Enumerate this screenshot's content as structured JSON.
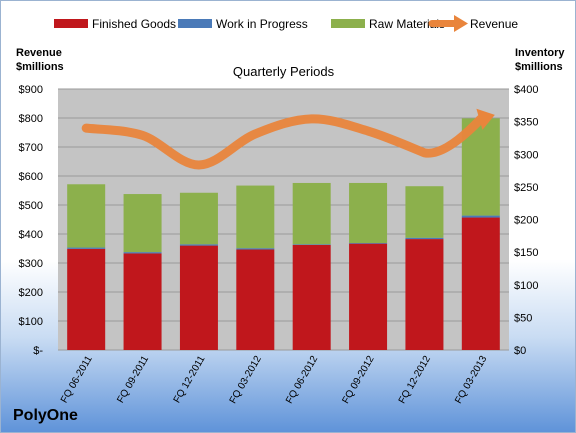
{
  "company": "PolyOne",
  "chart_data": {
    "type": "bar",
    "title": "Quarterly Periods",
    "ylabel_left": [
      "Revenue",
      "$millions"
    ],
    "ylabel_right": [
      "Inventory",
      "$millions"
    ],
    "categories": [
      "FQ 06-2011",
      "FQ 09-2011",
      "FQ 12-2011",
      "FQ 03-2012",
      "FQ 06-2012",
      "FQ 09-2012",
      "FQ 12-2012",
      "FQ 03-2013"
    ],
    "left_axis": {
      "min": 0,
      "max": 900,
      "step": 100,
      "ticks": [
        "$-",
        "$100",
        "$200",
        "$300",
        "$400",
        "$500",
        "$600",
        "$700",
        "$800",
        "$900"
      ]
    },
    "right_axis": {
      "min": 0,
      "max": 400,
      "step": 50,
      "ticks": [
        "$0",
        "$50",
        "$100",
        "$150",
        "$200",
        "$250",
        "$300",
        "$350",
        "$400"
      ]
    },
    "series": [
      {
        "name": "Finished Goods",
        "kind": "bar",
        "axis": "right",
        "color": "#c0171c",
        "values": [
          155,
          148,
          160,
          154,
          161,
          163,
          170,
          203
        ]
      },
      {
        "name": "Work in Progress",
        "kind": "bar",
        "axis": "right",
        "color": "#4a7ab8",
        "values": [
          2,
          2,
          2,
          2,
          1,
          1,
          2,
          3
        ]
      },
      {
        "name": "Raw Materials",
        "kind": "bar",
        "axis": "right",
        "color": "#8cb04c",
        "values": [
          97,
          89,
          79,
          96,
          94,
          92,
          79,
          149
        ]
      },
      {
        "name": "Revenue",
        "kind": "line",
        "axis": "left",
        "color": "#e9853c",
        "values": [
          765,
          740,
          638,
          745,
          797,
          755,
          680,
          790
        ]
      }
    ],
    "legend": "top",
    "grid": true
  }
}
